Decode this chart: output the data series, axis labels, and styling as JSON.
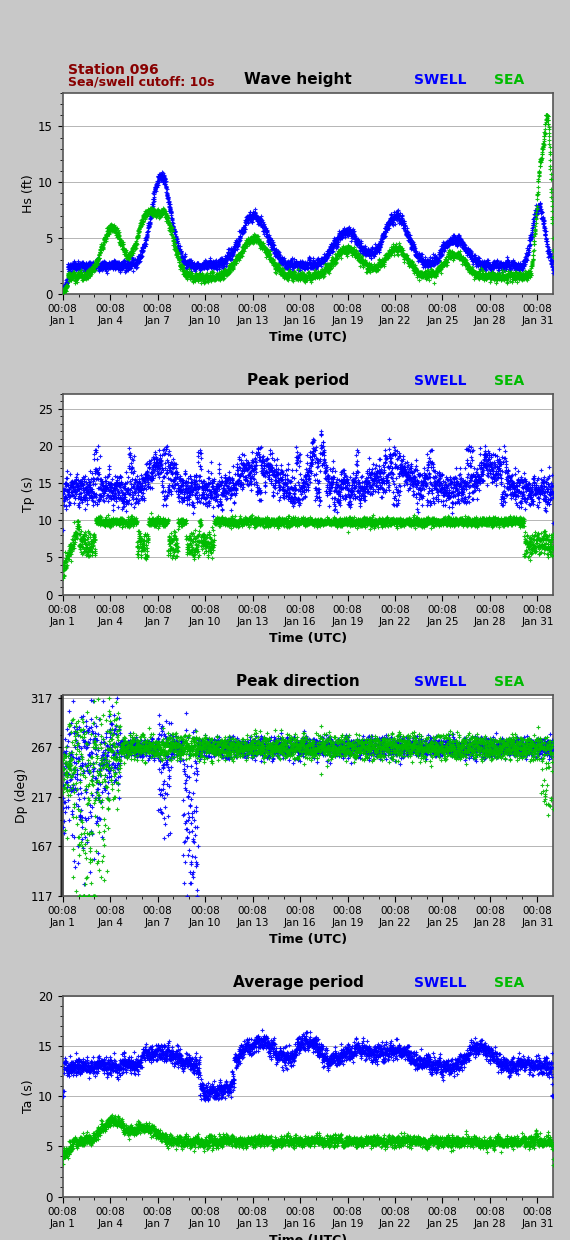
{
  "title1": "Wave height",
  "title2": "Peak period",
  "title3": "Peak direction",
  "title4": "Average period",
  "station_text": "Station 096",
  "cutoff_text": "Sea/swell cutoff: 10s",
  "ylabel1": "Hs (ft)",
  "ylabel2": "Tp (s)",
  "ylabel3": "Dp (deg)",
  "ylabel4": "Ta (s)",
  "xlabel": "Time (UTC)",
  "swell_color": "#0000ff",
  "sea_color": "#00bb00",
  "bg_color": "#c8c8c8",
  "plot_bg": "#ffffff",
  "station_color": "#880000",
  "ylim1": [
    0,
    18
  ],
  "ylim2": [
    0,
    27
  ],
  "ylim3": [
    117,
    320
  ],
  "ylim4": [
    0,
    20
  ],
  "yticks1": [
    0,
    5,
    10,
    15
  ],
  "yticks2": [
    0,
    5,
    10,
    15,
    20,
    25
  ],
  "yticks3": [
    117,
    167,
    217,
    267,
    317
  ],
  "yticks4": [
    0,
    5,
    10,
    15,
    20
  ],
  "n_points": 2976,
  "seed": 42
}
